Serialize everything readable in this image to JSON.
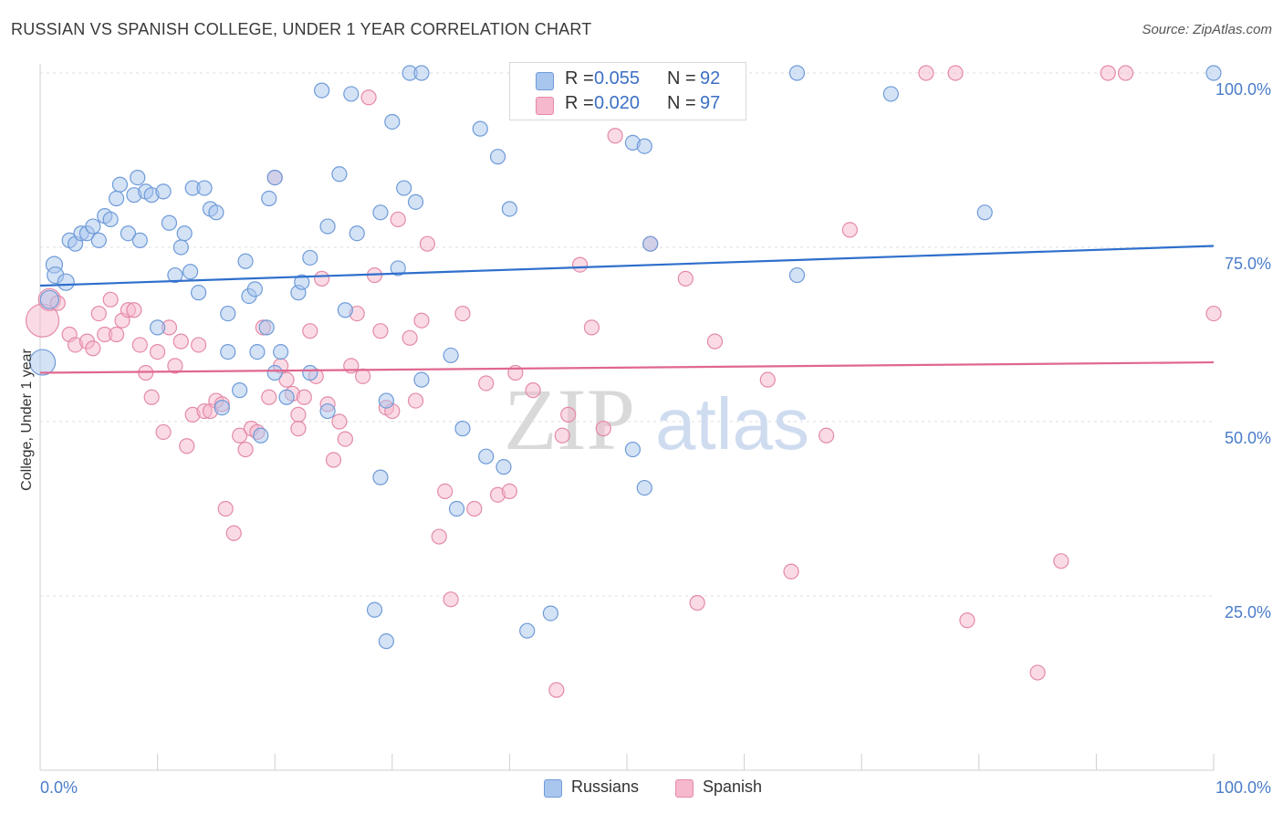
{
  "header": {
    "title": "RUSSIAN VS SPANISH COLLEGE, UNDER 1 YEAR CORRELATION CHART",
    "source": "Source: ZipAtlas.com"
  },
  "watermark": "ZIPatlas",
  "legend": {
    "russians": {
      "r_label": "R =",
      "r_value": "0.055",
      "n_label": "N =",
      "n_value": "92"
    },
    "spanish": {
      "r_label": "R =",
      "r_value": "0.020",
      "n_label": "N =",
      "n_value": "97"
    }
  },
  "colors": {
    "russians_fill": "#a9c6ee",
    "russians_stroke": "#6e9bd8",
    "russians_line": "#2e6fcc",
    "spanish_fill": "#f6b8cc",
    "spanish_stroke": "#e48aa8",
    "spanish_line": "#e0678f",
    "tick_text": "#4a7cc9"
  },
  "chart_data": {
    "type": "scatter",
    "ylabel": "College, Under 1 year",
    "xlim": [
      0,
      100
    ],
    "ylim": [
      0,
      105
    ],
    "y_ticks": [
      {
        "value": 25,
        "label": "25.0%"
      },
      {
        "value": 50,
        "label": "50.0%"
      },
      {
        "value": 75,
        "label": "75.0%"
      },
      {
        "value": 100,
        "label": "100.0%"
      }
    ],
    "x_tick_labels": {
      "min": "0.0%",
      "max": "100.0%"
    },
    "grid": "dashed horizontal",
    "legend_placement": "top-center and bottom",
    "series": [
      {
        "name": "Russians",
        "trend": {
          "x": [
            0,
            100
          ],
          "y": [
            69.5,
            75.2
          ]
        },
        "points": [
          [
            0.2,
            58.5,
            14
          ],
          [
            0.8,
            67.5,
            10
          ],
          [
            1.2,
            72.5,
            9
          ],
          [
            1.3,
            71,
            9
          ],
          [
            2.2,
            70,
            9
          ],
          [
            2.5,
            76,
            8
          ],
          [
            3.0,
            75.5,
            8
          ],
          [
            3.5,
            77,
            8
          ],
          [
            4.0,
            77,
            8
          ],
          [
            5.0,
            76,
            8
          ],
          [
            4.5,
            78,
            8
          ],
          [
            5.5,
            79.5,
            8
          ],
          [
            6.0,
            79,
            8
          ],
          [
            6.5,
            82,
            8
          ],
          [
            6.8,
            84,
            8
          ],
          [
            7.5,
            77,
            8
          ],
          [
            8.0,
            82.5,
            8
          ],
          [
            8.3,
            85,
            8
          ],
          [
            8.5,
            76,
            8
          ],
          [
            9.0,
            83,
            8
          ],
          [
            9.5,
            82.5,
            8
          ],
          [
            10.5,
            83,
            8
          ],
          [
            11,
            78.5,
            8
          ],
          [
            11.5,
            71,
            8
          ],
          [
            12,
            75,
            8
          ],
          [
            12.3,
            77,
            8
          ],
          [
            12.8,
            71.5,
            8
          ],
          [
            13,
            83.5,
            8
          ],
          [
            14,
            83.5,
            8
          ],
          [
            14.5,
            80.5,
            8
          ],
          [
            15,
            80,
            8
          ],
          [
            13.5,
            68.5,
            8
          ],
          [
            16,
            65.5,
            8
          ],
          [
            17.5,
            73,
            8
          ],
          [
            17.8,
            68,
            8
          ],
          [
            18.3,
            69,
            8
          ],
          [
            19.5,
            82,
            8
          ],
          [
            20,
            85,
            8
          ],
          [
            10,
            63.5,
            8
          ],
          [
            16,
            60,
            8
          ],
          [
            19.3,
            63.5,
            8
          ],
          [
            22,
            68.5,
            8
          ],
          [
            22.3,
            70,
            8
          ],
          [
            23,
            73.5,
            8
          ],
          [
            24.5,
            78,
            8
          ],
          [
            25.5,
            85.5,
            8
          ],
          [
            27,
            77,
            8
          ],
          [
            26,
            66,
            8
          ],
          [
            29,
            80,
            8
          ],
          [
            30,
            93,
            8
          ],
          [
            31,
            83.5,
            8
          ],
          [
            32,
            81.5,
            8
          ],
          [
            30.5,
            72,
            8
          ],
          [
            24,
            97.5,
            8
          ],
          [
            26.5,
            97,
            8
          ],
          [
            31.5,
            100,
            8
          ],
          [
            32.5,
            100,
            8
          ],
          [
            37.5,
            92,
            8
          ],
          [
            39,
            88,
            8
          ],
          [
            40,
            80.5,
            8
          ],
          [
            18.5,
            60,
            8
          ],
          [
            20.5,
            60,
            8
          ],
          [
            21,
            53.5,
            8
          ],
          [
            23,
            57,
            8
          ],
          [
            24.5,
            51.5,
            8
          ],
          [
            20,
            57,
            8
          ],
          [
            17,
            54.5,
            8
          ],
          [
            15.5,
            52,
            8
          ],
          [
            18.8,
            48,
            8
          ],
          [
            29.5,
            53,
            8
          ],
          [
            32.5,
            56,
            8
          ],
          [
            35,
            59.5,
            8
          ],
          [
            36,
            49,
            8
          ],
          [
            38,
            45,
            8
          ],
          [
            39.5,
            43.5,
            8
          ],
          [
            35.5,
            37.5,
            8
          ],
          [
            29,
            42,
            8
          ],
          [
            28.5,
            23,
            8
          ],
          [
            29.5,
            18.5,
            8
          ],
          [
            41.5,
            20,
            8
          ],
          [
            43.5,
            22.5,
            8
          ],
          [
            50.5,
            46,
            8
          ],
          [
            51.5,
            40.5,
            8
          ],
          [
            50.5,
            90,
            8
          ],
          [
            51.5,
            89.5,
            8
          ],
          [
            52,
            75.5,
            8
          ],
          [
            59.5,
            100,
            8
          ],
          [
            64.5,
            100,
            8
          ],
          [
            64.5,
            71,
            8
          ],
          [
            72.5,
            97,
            8
          ],
          [
            80.5,
            80,
            8
          ],
          [
            100,
            100,
            8
          ]
        ]
      },
      {
        "name": "Spanish",
        "trend": {
          "x": [
            0,
            100
          ],
          "y": [
            57.0,
            58.5
          ]
        },
        "points": [
          [
            0.2,
            64.5,
            18
          ],
          [
            0.8,
            67.5,
            12
          ],
          [
            1.5,
            67,
            8
          ],
          [
            2.5,
            62.5,
            8
          ],
          [
            3.0,
            61,
            8
          ],
          [
            4.0,
            61.5,
            8
          ],
          [
            4.5,
            60.5,
            8
          ],
          [
            5.0,
            65.5,
            8
          ],
          [
            5.5,
            62.5,
            8
          ],
          [
            6.0,
            67.5,
            8
          ],
          [
            6.5,
            62.5,
            8
          ],
          [
            7.0,
            64.5,
            8
          ],
          [
            7.5,
            66,
            8
          ],
          [
            8.0,
            66,
            8
          ],
          [
            8.5,
            61,
            8
          ],
          [
            9.0,
            57,
            8
          ],
          [
            9.5,
            53.5,
            8
          ],
          [
            10,
            60,
            8
          ],
          [
            10.5,
            48.5,
            8
          ],
          [
            11,
            63.5,
            8
          ],
          [
            11.5,
            58,
            8
          ],
          [
            12,
            61.5,
            8
          ],
          [
            12.5,
            46.5,
            8
          ],
          [
            13,
            51,
            8
          ],
          [
            13.5,
            61,
            8
          ],
          [
            14,
            51.5,
            8
          ],
          [
            14.5,
            51.5,
            8
          ],
          [
            15,
            53,
            8
          ],
          [
            15.5,
            52.5,
            8
          ],
          [
            15.8,
            37.5,
            8
          ],
          [
            16.5,
            34,
            8
          ],
          [
            17,
            48,
            8
          ],
          [
            17.5,
            46,
            8
          ],
          [
            18,
            49,
            8
          ],
          [
            18.5,
            48.5,
            8
          ],
          [
            19,
            63.5,
            8
          ],
          [
            19.5,
            53.5,
            8
          ],
          [
            20,
            85,
            8
          ],
          [
            20.5,
            58,
            8
          ],
          [
            21,
            56,
            8
          ],
          [
            21.5,
            54,
            8
          ],
          [
            22,
            51,
            8
          ],
          [
            22,
            49,
            8
          ],
          [
            22.5,
            53.5,
            8
          ],
          [
            23.0,
            63,
            8
          ],
          [
            23.5,
            56.5,
            8
          ],
          [
            24,
            70.5,
            8
          ],
          [
            24.5,
            52.5,
            8
          ],
          [
            25,
            44.5,
            8
          ],
          [
            25.5,
            50,
            8
          ],
          [
            26,
            47.5,
            8
          ],
          [
            26.5,
            58,
            8
          ],
          [
            27,
            65.5,
            8
          ],
          [
            27.5,
            56.5,
            8
          ],
          [
            28,
            96.5,
            8
          ],
          [
            28.5,
            71,
            8
          ],
          [
            29,
            63,
            8
          ],
          [
            29.5,
            52,
            8
          ],
          [
            30,
            51.5,
            8
          ],
          [
            30.5,
            79,
            8
          ],
          [
            31.5,
            62,
            8
          ],
          [
            32,
            53,
            8
          ],
          [
            32.5,
            64.5,
            8
          ],
          [
            33,
            75.5,
            8
          ],
          [
            34,
            33.5,
            8
          ],
          [
            34.5,
            40,
            8
          ],
          [
            35,
            24.5,
            8
          ],
          [
            36,
            65.5,
            8
          ],
          [
            37,
            37.5,
            8
          ],
          [
            38,
            55.5,
            8
          ],
          [
            39,
            39.5,
            8
          ],
          [
            40,
            40,
            8
          ],
          [
            40.5,
            57,
            8
          ],
          [
            42,
            54.5,
            8
          ],
          [
            44,
            11.5,
            8
          ],
          [
            44.5,
            48,
            8
          ],
          [
            45,
            51,
            8
          ],
          [
            46,
            72.5,
            8
          ],
          [
            47,
            63.5,
            8
          ],
          [
            48,
            49,
            8
          ],
          [
            49,
            91,
            8
          ],
          [
            52,
            75.5,
            8
          ],
          [
            55,
            70.5,
            8
          ],
          [
            56,
            24,
            8
          ],
          [
            57.5,
            61.5,
            8
          ],
          [
            62,
            56,
            8
          ],
          [
            64,
            28.5,
            8
          ],
          [
            67,
            48,
            8
          ],
          [
            69,
            77.5,
            8
          ],
          [
            75.5,
            100,
            8
          ],
          [
            78,
            100,
            8
          ],
          [
            79,
            21.5,
            8
          ],
          [
            85,
            14,
            8
          ],
          [
            87,
            30,
            8
          ],
          [
            91,
            100,
            8
          ],
          [
            92.5,
            100,
            8
          ],
          [
            100,
            65.5,
            8
          ]
        ]
      }
    ]
  },
  "bottom_legend": {
    "russians": "Russians",
    "spanish": "Spanish"
  }
}
